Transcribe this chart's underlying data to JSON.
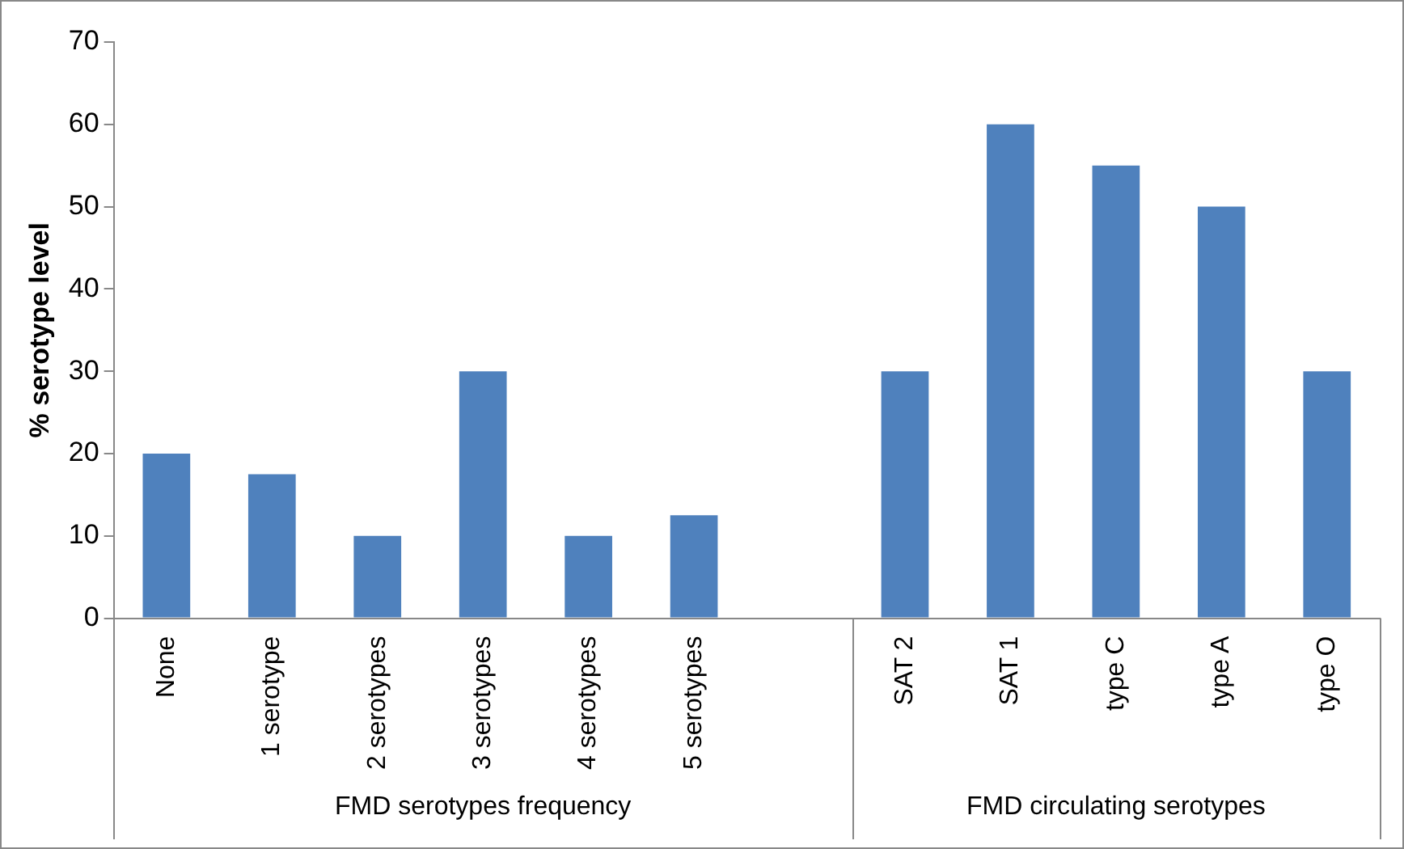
{
  "chart_data": {
    "type": "bar",
    "ylabel": "% serotype level",
    "categories": [
      "None",
      "1 serotype",
      "2 serotypes",
      "3 serotypes",
      "4 serotypes",
      "5 serotypes",
      null,
      "SAT 2",
      "SAT 1",
      "type C",
      "type A",
      "type O"
    ],
    "values": [
      20,
      17.5,
      10,
      30,
      10,
      12.5,
      null,
      30,
      60,
      55,
      50,
      30
    ],
    "color": "#4f81bd",
    "ylim": [
      0,
      70
    ],
    "yticks": [
      0,
      10,
      20,
      30,
      40,
      50,
      60,
      70
    ],
    "grid": false,
    "legend": false,
    "annotations": [
      "FMD serotypes frequency",
      "FMD circulating serotypes"
    ]
  }
}
